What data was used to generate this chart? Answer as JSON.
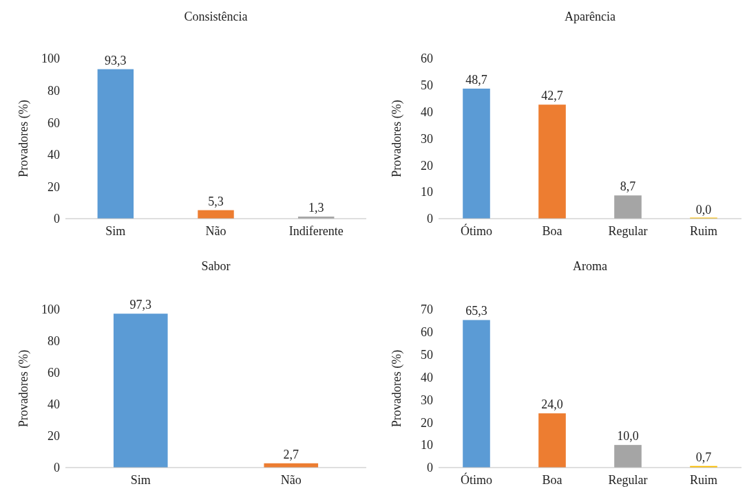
{
  "chart_data": [
    {
      "type": "bar",
      "title": "Consistência",
      "ylabel": "Provadores (%)",
      "categories": [
        "Sim",
        "Não",
        "Indiferente"
      ],
      "values": [
        93.3,
        5.3,
        1.3
      ],
      "colors": [
        "#5b9bd5",
        "#ed7d31",
        "#a5a5a5"
      ],
      "value_labels": [
        "93,3",
        "5,3",
        "1,3"
      ],
      "ylim": [
        0,
        100
      ],
      "yticks": [
        0,
        20,
        40,
        60,
        80,
        100
      ],
      "grid": false
    },
    {
      "type": "bar",
      "title": "Aparência",
      "ylabel": "Provadores (%)",
      "categories": [
        "Ótimo",
        "Boa",
        "Regular",
        "Ruim"
      ],
      "values": [
        48.7,
        42.7,
        8.7,
        0
      ],
      "colors": [
        "#5b9bd5",
        "#ed7d31",
        "#a5a5a5",
        "#ffc000"
      ],
      "value_labels": [
        "48,7",
        "42,7",
        "8,7",
        "0,0"
      ],
      "ylim": [
        0,
        60
      ],
      "yticks": [
        0,
        10,
        20,
        30,
        40,
        50,
        60
      ],
      "grid": false
    },
    {
      "type": "bar",
      "title": "Sabor",
      "ylabel": "Provadores (%)",
      "categories": [
        "Sim",
        "Não"
      ],
      "values": [
        97.3,
        2.7
      ],
      "colors": [
        "#5b9bd5",
        "#ed7d31"
      ],
      "value_labels": [
        "97,3",
        "2,7"
      ],
      "ylim": [
        0,
        100
      ],
      "yticks": [
        0,
        20,
        40,
        60,
        80,
        100
      ],
      "grid": false
    },
    {
      "type": "bar",
      "title": "Aroma",
      "ylabel": "Provadores (%)",
      "categories": [
        "Ótimo",
        "Boa",
        "Regular",
        "Ruim"
      ],
      "values": [
        65.3,
        24.0,
        10.0,
        0.7
      ],
      "colors": [
        "#5b9bd5",
        "#ed7d31",
        "#a5a5a5",
        "#ffc000"
      ],
      "value_labels": [
        "65,3",
        "24,0",
        "10,0",
        "0,7"
      ],
      "ylim": [
        0,
        70
      ],
      "yticks": [
        0,
        10,
        20,
        30,
        40,
        50,
        60,
        70
      ],
      "grid": false
    }
  ]
}
